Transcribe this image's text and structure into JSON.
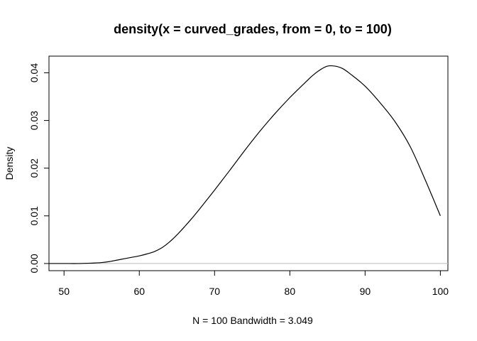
{
  "chart_data": {
    "type": "line",
    "title": "density(x = curved_grades, from = 0, to = 100)",
    "xlabel": "N = 100   Bandwidth = 3.049",
    "ylabel": "Density",
    "xlim": [
      48,
      101
    ],
    "ylim": [
      -0.0015,
      0.0435
    ],
    "x_ticks": [
      50,
      60,
      70,
      80,
      90,
      100
    ],
    "y_ticks": [
      0.0,
      0.01,
      0.02,
      0.03,
      0.04
    ],
    "x_tick_labels": [
      "50",
      "60",
      "70",
      "80",
      "90",
      "100"
    ],
    "y_tick_labels": [
      "0.00",
      "0.01",
      "0.02",
      "0.03",
      "0.04"
    ],
    "reference_line_y": 0,
    "grid": false,
    "series": [
      {
        "x": [
          48,
          50,
          52,
          54,
          55,
          56,
          57,
          58,
          59,
          60,
          61,
          62,
          63,
          64,
          65,
          66,
          67,
          68,
          70,
          72,
          74,
          76,
          78,
          80,
          82,
          83,
          84,
          85,
          86,
          87,
          88,
          90,
          92,
          94,
          96,
          98,
          100
        ],
        "y": [
          0.0,
          0.0,
          0.0,
          0.0001,
          0.0002,
          0.0004,
          0.0007,
          0.001,
          0.0013,
          0.0016,
          0.002,
          0.0025,
          0.0033,
          0.0045,
          0.006,
          0.0077,
          0.0095,
          0.0114,
          0.0154,
          0.0195,
          0.0237,
          0.0277,
          0.0314,
          0.0348,
          0.0379,
          0.0394,
          0.0406,
          0.0414,
          0.0414,
          0.0409,
          0.0398,
          0.0372,
          0.0337,
          0.0297,
          0.0245,
          0.0175,
          0.01
        ],
        "color": "#000000"
      }
    ]
  }
}
